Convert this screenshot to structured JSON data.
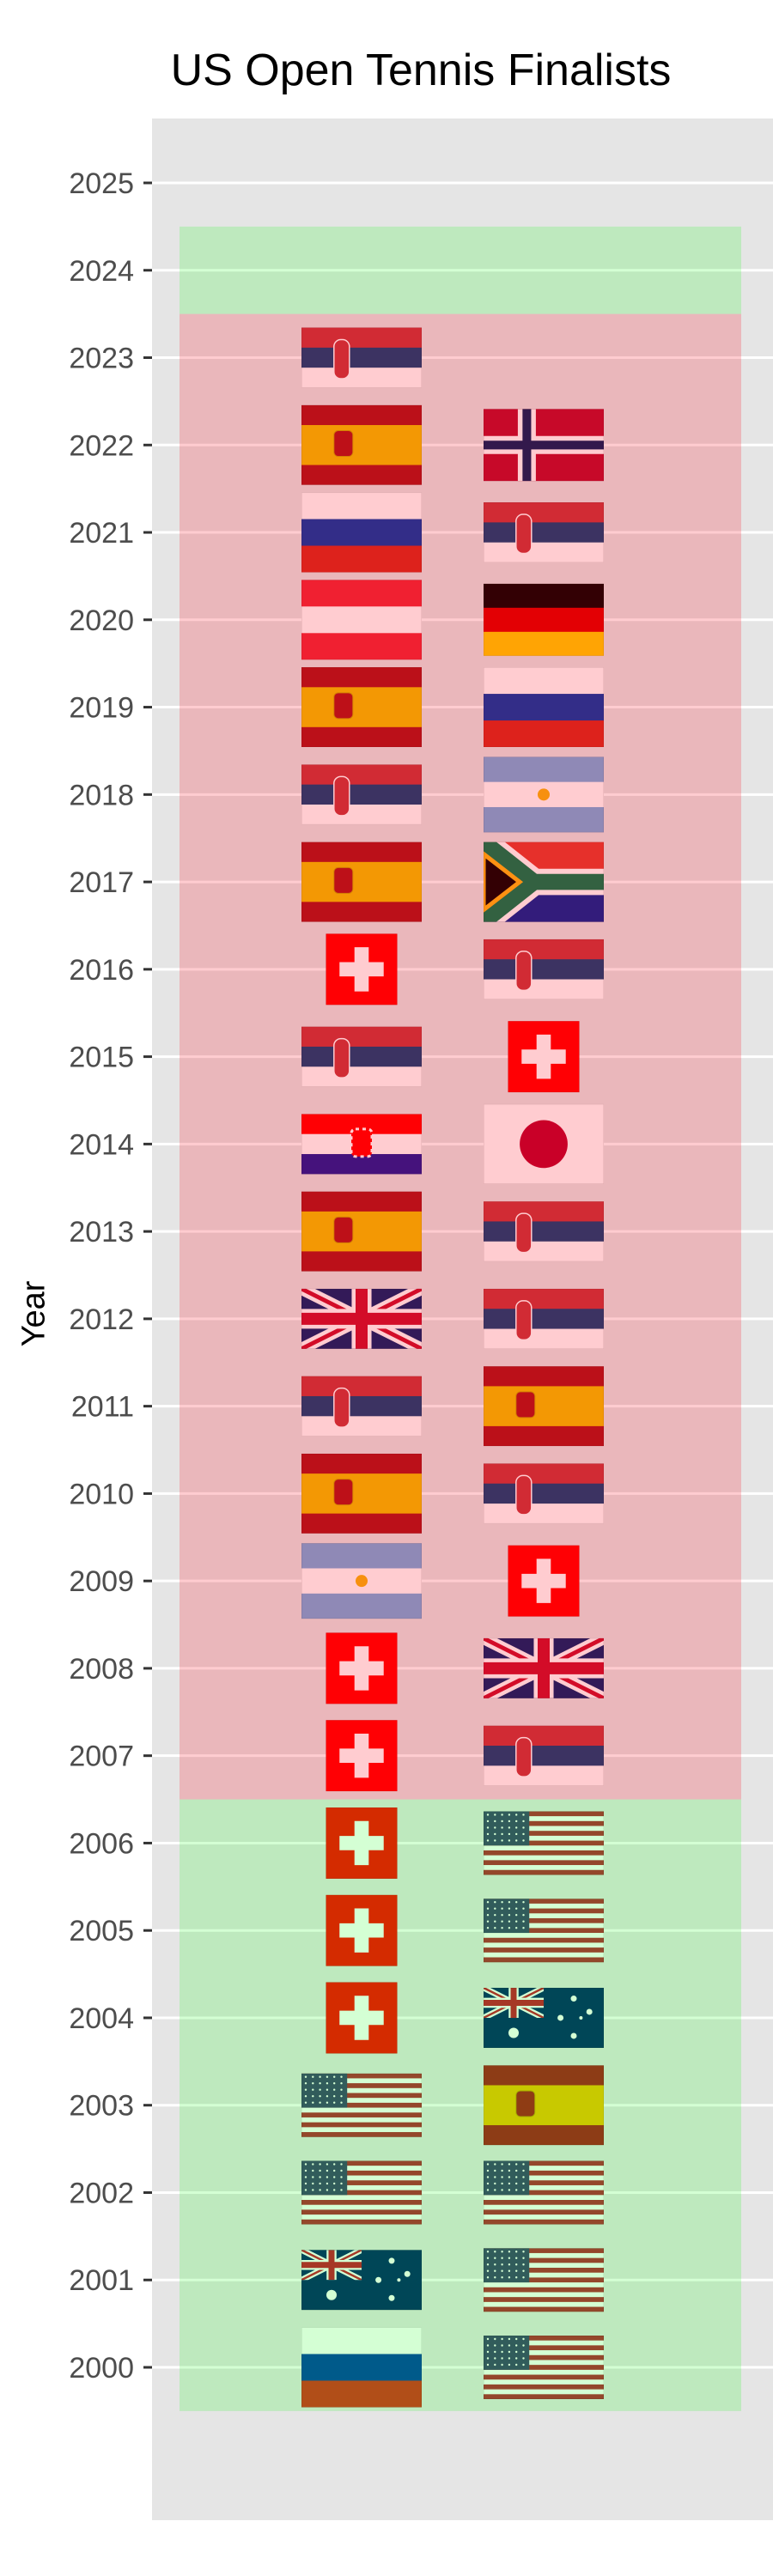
{
  "chart_data": {
    "type": "scatter",
    "title": "US Open Tennis Finalists",
    "xlabel": "",
    "ylabel": "Year",
    "ylim": [
      1998.5,
      2025.8
    ],
    "yticks": [
      2000,
      2001,
      2002,
      2003,
      2004,
      2005,
      2006,
      2007,
      2008,
      2009,
      2010,
      2011,
      2012,
      2013,
      2014,
      2015,
      2016,
      2017,
      2018,
      2019,
      2020,
      2021,
      2022,
      2023,
      2024,
      2025
    ],
    "columns": [
      "left",
      "right"
    ],
    "finalists": [
      {
        "year": 2023,
        "left": "SRB",
        "right": null
      },
      {
        "year": 2022,
        "left": "ESP",
        "right": "NOR"
      },
      {
        "year": 2021,
        "left": "RUS",
        "right": "SRB"
      },
      {
        "year": 2020,
        "left": "AUT",
        "right": "GER"
      },
      {
        "year": 2019,
        "left": "ESP",
        "right": "RUS"
      },
      {
        "year": 2018,
        "left": "SRB",
        "right": "ARG"
      },
      {
        "year": 2017,
        "left": "ESP",
        "right": "RSA"
      },
      {
        "year": 2016,
        "left": "SUI",
        "right": "SRB"
      },
      {
        "year": 2015,
        "left": "SRB",
        "right": "SUI"
      },
      {
        "year": 2014,
        "left": "CRO",
        "right": "JPN"
      },
      {
        "year": 2013,
        "left": "ESP",
        "right": "SRB"
      },
      {
        "year": 2012,
        "left": "GBR",
        "right": "SRB"
      },
      {
        "year": 2011,
        "left": "SRB",
        "right": "ESP"
      },
      {
        "year": 2010,
        "left": "ESP",
        "right": "SRB"
      },
      {
        "year": 2009,
        "left": "ARG",
        "right": "SUI"
      },
      {
        "year": 2008,
        "left": "SUI",
        "right": "GBR"
      },
      {
        "year": 2007,
        "left": "SUI",
        "right": "SRB"
      },
      {
        "year": 2006,
        "left": "SUI",
        "right": "USA"
      },
      {
        "year": 2005,
        "left": "SUI",
        "right": "USA"
      },
      {
        "year": 2004,
        "left": "SUI",
        "right": "AUS"
      },
      {
        "year": 2003,
        "left": "USA",
        "right": "ESP"
      },
      {
        "year": 2002,
        "left": "USA",
        "right": "USA"
      },
      {
        "year": 2001,
        "left": "AUS",
        "right": "USA"
      },
      {
        "year": 2000,
        "left": "RUS",
        "right": "USA"
      }
    ],
    "bands": [
      {
        "from": 2023.5,
        "to": 2024.5,
        "color": "#00ff00",
        "opacity": 0.17
      },
      {
        "from": 2006.5,
        "to": 2023.5,
        "color": "#ff0014",
        "opacity": 0.2
      },
      {
        "from": 1999.5,
        "to": 2006.5,
        "color": "#00ff00",
        "opacity": 0.17
      }
    ],
    "grid": true,
    "legend": "none"
  },
  "colors": {
    "panel": "#e5e5e5",
    "grid": "#ffffff",
    "tick_text": "#4d4d4d"
  }
}
